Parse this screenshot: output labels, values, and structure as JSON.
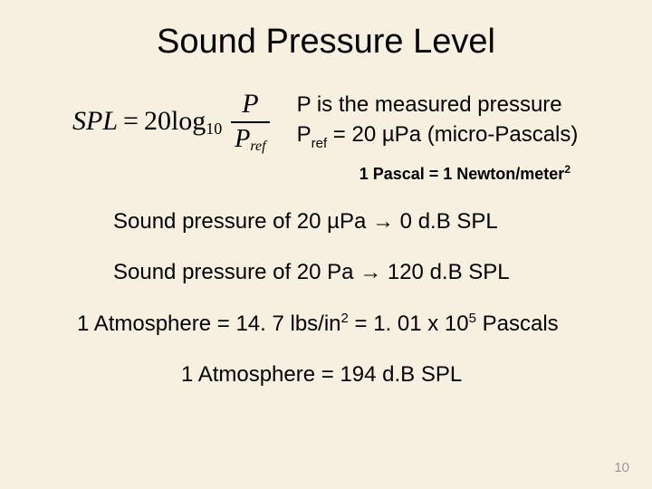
{
  "title": "Sound Pressure Level",
  "formula": {
    "lhs": "SPL",
    "eq": "=",
    "coef": "20",
    "log": "log",
    "logbase": "10",
    "num": "P",
    "den_main": "P",
    "den_sub": "ref"
  },
  "defs": {
    "line1": "P is the measured pressure",
    "line2_a": "P",
    "line2_sub": "ref",
    "line2_b": " = 20 µPa (micro-Pascals)"
  },
  "pascal_note": {
    "a": "1 Pascal = 1 Newton/meter",
    "sup": "2"
  },
  "line_a": {
    "pre": "Sound pressure of 20 µPa ",
    "arrow": "→",
    "post": " 0 d.B SPL"
  },
  "line_b": {
    "pre": "Sound pressure of 20 Pa ",
    "arrow": "→",
    "post": " 120 d.B SPL"
  },
  "atm1": {
    "a": "1 Atmosphere = 14. 7 lbs/in",
    "sup1": "2",
    "b": " = 1. 01 x 10",
    "sup2": "5",
    "c": " Pascals"
  },
  "atm2": "1 Atmosphere = 194 d.B SPL",
  "page": "10"
}
